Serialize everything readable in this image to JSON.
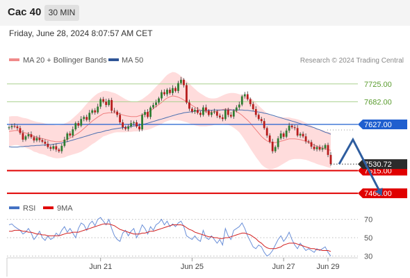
{
  "header": {
    "title": "Cac 40",
    "timeframe": "30 MIN"
  },
  "date_text": "Friday, June 28, 2024 8:07:57 AM CET",
  "colors": {
    "candle_up": "#2e7d32",
    "candle_down": "#b71c1c",
    "bollinger_fill": "#ffd6d6",
    "ma20": "#ef7f7f",
    "ma50": "#4a6fb0",
    "resistance_green": "#a9d18e",
    "pivot_blue": "#1f5fcf",
    "support_red": "#e00000",
    "rsi": "#6a8fd8",
    "rsi_ma": "#d21f1f",
    "arrow": "#2e5d9f"
  },
  "chart_data": [
    {
      "type": "candlestick",
      "legend": [
        {
          "name": "MA 20 + Bollinger Bands",
          "color": "#f08a8a"
        },
        {
          "name": "MA 50",
          "color": "#2f5597"
        }
      ],
      "watermark": "Research © 2024 Trading Central",
      "ylim": [
        7440,
        7760
      ],
      "x_ticks": [
        {
          "label": "Jun 21",
          "index": 33
        },
        {
          "label": "Jun 25",
          "index": 66
        },
        {
          "label": "Jun 27",
          "index": 99
        },
        {
          "label": "Jun 29",
          "index": 115
        }
      ],
      "levels": [
        {
          "value": 7725.0,
          "label": "7725.00",
          "kind": "resistance"
        },
        {
          "value": 7682.0,
          "label": "7682.00",
          "kind": "resistance"
        },
        {
          "value": 7627.0,
          "label": "7627.00",
          "kind": "pivot"
        },
        {
          "value": 7515.0,
          "label": "7515.00",
          "kind": "support"
        },
        {
          "value": 7460.0,
          "label": "7460.00",
          "kind": "support"
        }
      ],
      "last_price": {
        "value": 7530.72,
        "label": "7530.72"
      },
      "closes": [
        7620,
        7623,
        7622,
        7618,
        7606,
        7590,
        7598,
        7603,
        7596,
        7588,
        7594,
        7589,
        7585,
        7580,
        7572,
        7568,
        7574,
        7566,
        7562,
        7575,
        7590,
        7605,
        7600,
        7615,
        7630,
        7624,
        7640,
        7645,
        7638,
        7655,
        7661,
        7656,
        7670,
        7688,
        7682,
        7674,
        7686,
        7660,
        7658,
        7650,
        7632,
        7620,
        7616,
        7622,
        7630,
        7632,
        7622,
        7615,
        7650,
        7657,
        7645,
        7668,
        7674,
        7680,
        7690,
        7705,
        7700,
        7711,
        7703,
        7715,
        7708,
        7727,
        7735,
        7722,
        7680,
        7665,
        7658,
        7662,
        7655,
        7650,
        7668,
        7660,
        7650,
        7656,
        7658,
        7648,
        7644,
        7640,
        7662,
        7650,
        7646,
        7660,
        7668,
        7675,
        7695,
        7700,
        7688,
        7676,
        7664,
        7650,
        7640,
        7635,
        7618,
        7600,
        7585,
        7562,
        7572,
        7593,
        7605,
        7597,
        7612,
        7624,
        7620,
        7618,
        7600,
        7604,
        7598,
        7586,
        7584,
        7573,
        7567,
        7572,
        7566,
        7569,
        7577,
        7553,
        7530.72
      ],
      "ma20": [
        7610,
        7611,
        7612,
        7612,
        7610,
        7608,
        7606,
        7604,
        7601,
        7598,
        7596,
        7594,
        7593,
        7591,
        7589,
        7587,
        7586,
        7585,
        7585,
        7586,
        7588,
        7591,
        7594,
        7598,
        7602,
        7606,
        7611,
        7617,
        7623,
        7629,
        7635,
        7640,
        7645,
        7649,
        7653,
        7654,
        7655,
        7655,
        7655,
        7654,
        7652,
        7650,
        7648,
        7647,
        7646,
        7646,
        7646,
        7648,
        7650,
        7653,
        7656,
        7660,
        7665,
        7670,
        7675,
        7680,
        7686,
        7691,
        7694,
        7696,
        7695,
        7693,
        7690,
        7686,
        7682,
        7678,
        7673,
        7669,
        7665,
        7662,
        7660,
        7658,
        7657,
        7657,
        7658,
        7659,
        7661,
        7663,
        7664,
        7664,
        7663,
        7661,
        7658,
        7654,
        7649,
        7643,
        7637,
        7630,
        7622,
        7614,
        7606,
        7598,
        7592,
        7587,
        7584,
        7583,
        7583,
        7584,
        7586,
        7588,
        7590,
        7592,
        7592,
        7592,
        7591,
        7590,
        7588,
        7586,
        7583,
        7580,
        7577,
        7574,
        7572,
        7570,
        7568,
        7566,
        7564
      ],
      "bb_width": [
        36,
        36,
        35,
        35,
        35,
        35,
        36,
        36,
        36,
        37,
        37,
        38,
        38,
        38,
        39,
        39,
        40,
        40,
        40,
        40,
        41,
        41,
        42,
        44,
        46,
        48,
        50,
        52,
        54,
        55,
        56,
        57,
        57,
        56,
        55,
        54,
        52,
        50,
        48,
        46,
        44,
        42,
        40,
        38,
        37,
        36,
        36,
        37,
        38,
        40,
        42,
        44,
        46,
        48,
        50,
        52,
        54,
        56,
        57,
        58,
        58,
        56,
        54,
        52,
        50,
        48,
        46,
        44,
        42,
        40,
        38,
        36,
        34,
        33,
        32,
        32,
        33,
        34,
        36,
        38,
        40,
        42,
        44,
        46,
        50,
        54,
        58,
        62,
        64,
        66,
        67,
        68,
        68,
        67,
        66,
        64,
        62,
        60,
        58,
        56,
        54,
        52,
        50,
        49,
        48,
        47,
        46,
        45,
        44,
        44,
        43,
        43,
        43,
        43,
        43,
        43,
        43
      ],
      "ma50": [
        7573,
        7572,
        7572,
        7572,
        7573,
        7573,
        7574,
        7574,
        7575,
        7575,
        7576,
        7576,
        7577,
        7577,
        7578,
        7578,
        7579,
        7580,
        7581,
        7582,
        7584,
        7585,
        7587,
        7589,
        7591,
        7593,
        7595,
        7597,
        7599,
        7601,
        7603,
        7605,
        7607,
        7608,
        7610,
        7612,
        7613,
        7615,
        7616,
        7617,
        7618,
        7619,
        7620,
        7621,
        7622,
        7623,
        7624,
        7625,
        7627,
        7628,
        7630,
        7632,
        7634,
        7636,
        7638,
        7640,
        7642,
        7644,
        7646,
        7648,
        7650,
        7652,
        7653,
        7655,
        7656,
        7657,
        7658,
        7659,
        7660,
        7660,
        7661,
        7661,
        7661,
        7661,
        7662,
        7662,
        7662,
        7662,
        7662,
        7662,
        7662,
        7662,
        7662,
        7662,
        7662,
        7661,
        7661,
        7660,
        7659,
        7658,
        7657,
        7656,
        7654,
        7653,
        7651,
        7649,
        7647,
        7645,
        7643,
        7641,
        7639,
        7637,
        7635,
        7633,
        7631,
        7629,
        7627,
        7625,
        7623,
        7621,
        7619,
        7616,
        7614,
        7611,
        7608,
        7606,
        7603
      ],
      "forecast_path": [
        {
          "index": 119,
          "value": 7530.72
        },
        {
          "index": 124,
          "value": 7590
        },
        {
          "index": 134,
          "value": 7460
        }
      ]
    },
    {
      "type": "line",
      "series": [
        {
          "name": "RSI",
          "color": "#4472c4"
        },
        {
          "name": "9MA",
          "color": "#e00000"
        }
      ],
      "ylim": [
        25,
        78
      ],
      "y_ticks": [
        70,
        50,
        30
      ],
      "rsi": [
        64,
        65,
        62,
        60,
        58,
        54,
        56,
        60,
        55,
        48,
        52,
        57,
        50,
        47,
        52,
        48,
        50,
        55,
        52,
        58,
        62,
        56,
        60,
        55,
        50,
        60,
        66,
        64,
        58,
        65,
        68,
        63,
        70,
        72,
        68,
        64,
        70,
        60,
        52,
        48,
        46,
        55,
        58,
        52,
        57,
        60,
        50,
        56,
        64,
        60,
        54,
        62,
        58,
        64,
        66,
        70,
        64,
        68,
        62,
        65,
        62,
        66,
        68,
        62,
        52,
        50,
        48,
        52,
        48,
        46,
        58,
        50,
        48,
        52,
        48,
        44,
        48,
        42,
        60,
        52,
        48,
        58,
        60,
        62,
        66,
        60,
        52,
        46,
        40,
        38,
        42,
        40,
        34,
        30,
        32,
        36,
        42,
        48,
        52,
        46,
        50,
        56,
        48,
        42,
        38,
        44,
        40,
        36,
        38,
        36,
        34,
        38,
        36,
        38,
        40,
        34,
        30
      ],
      "rsi_ma": [
        57,
        57,
        58,
        58,
        58,
        57,
        57,
        56,
        56,
        55,
        54,
        54,
        53,
        53,
        52,
        52,
        52,
        52,
        52,
        53,
        54,
        55,
        55,
        56,
        56,
        56,
        57,
        58,
        59,
        60,
        61,
        62,
        63,
        64,
        65,
        65,
        65,
        64,
        63,
        61,
        59,
        58,
        57,
        56,
        55,
        54,
        54,
        54,
        55,
        55,
        56,
        57,
        57,
        58,
        59,
        60,
        61,
        62,
        63,
        64,
        64,
        64,
        64,
        63,
        61,
        59,
        58,
        56,
        55,
        54,
        53,
        52,
        51,
        51,
        50,
        50,
        49,
        49,
        50,
        50,
        51,
        52,
        53,
        54,
        55,
        55,
        54,
        53,
        51,
        49,
        46,
        44,
        41,
        39,
        38,
        38,
        38,
        39,
        40,
        42,
        43,
        44,
        44,
        44,
        43,
        42,
        41,
        40,
        39,
        38,
        38,
        37,
        37,
        36,
        36,
        36,
        35
      ]
    }
  ]
}
